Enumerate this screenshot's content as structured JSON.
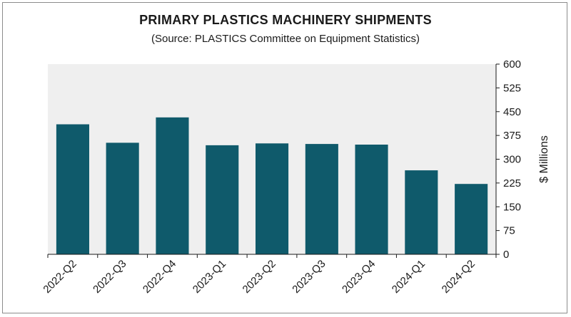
{
  "chart_data": {
    "type": "bar",
    "title": "PRIMARY PLASTICS MACHINERY SHIPMENTS",
    "subtitle": "(Source: PLASTICS Committee on Equipment Statistics)",
    "xlabel": "",
    "ylabel": "$ Millions",
    "categories": [
      "2022-Q2",
      "2022-Q3",
      "2022-Q4",
      "2023-Q1",
      "2023-Q2",
      "2023-Q3",
      "2023-Q4",
      "2024-Q1",
      "2024-Q2"
    ],
    "values": [
      410,
      352,
      432,
      344,
      350,
      348,
      346,
      265,
      222
    ],
    "ylim": [
      0,
      600
    ],
    "yticks": [
      "0",
      "75",
      "150",
      "225",
      "300",
      "375",
      "450",
      "525",
      "600"
    ],
    "y_axis_side": "right",
    "grid": false,
    "legend": "none",
    "bar_color": "#0f5a6b",
    "plot_background": "#efefef"
  }
}
